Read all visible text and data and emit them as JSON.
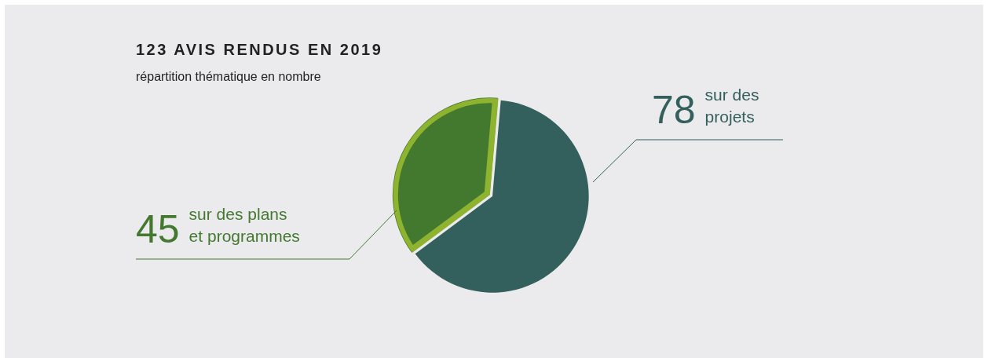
{
  "chart_data": {
    "type": "pie",
    "title": "123 AVIS RENDUS EN 2019",
    "subtitle": "répartition thématique en nombre",
    "categories": [
      "sur des projets",
      "sur des plans et programmes"
    ],
    "values": [
      78,
      45
    ],
    "colors": [
      "#335f5c",
      "#43782f"
    ],
    "data_labels": true,
    "legend": false
  }
}
